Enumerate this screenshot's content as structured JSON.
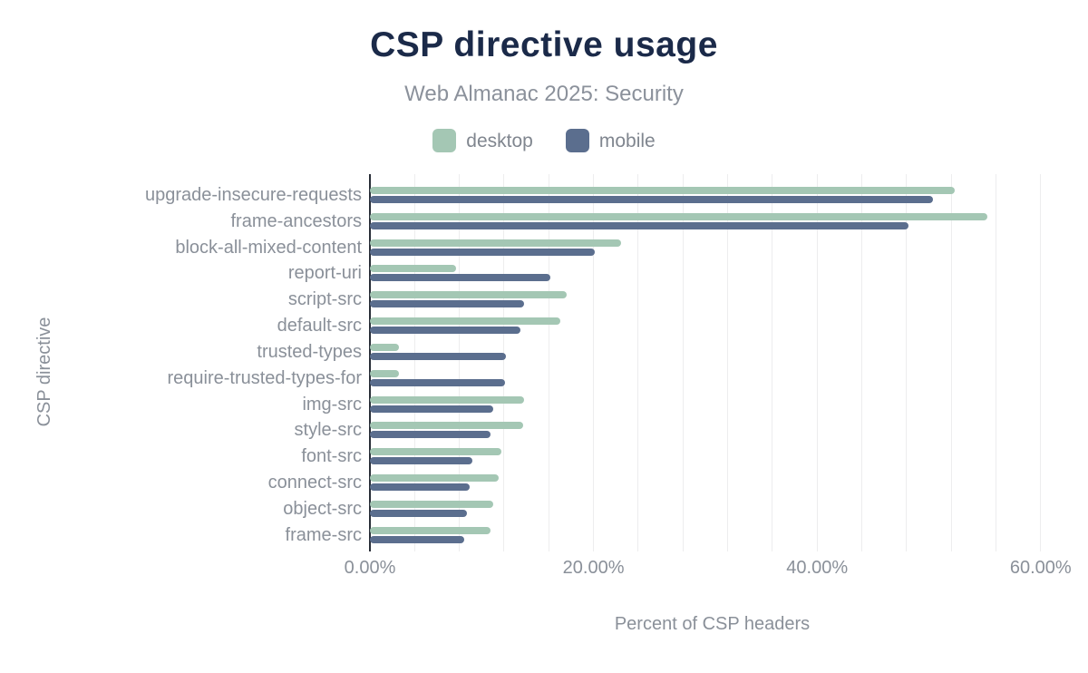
{
  "chart_data": {
    "type": "bar",
    "orientation": "horizontal",
    "title": "CSP directive usage",
    "subtitle": "Web Almanac 2025: Security",
    "xlabel": "Percent of CSP headers",
    "ylabel": "CSP directive",
    "xlim": [
      0,
      61.2
    ],
    "grid": true,
    "grid_step_percent": 4,
    "legend_position": "top",
    "x_ticks": [
      {
        "value": 0,
        "label": "0.00%"
      },
      {
        "value": 20,
        "label": "20.00%"
      },
      {
        "value": 40,
        "label": "40.00%"
      },
      {
        "value": 60,
        "label": "60.00%"
      }
    ],
    "categories": [
      "upgrade-insecure-requests",
      "frame-ancestors",
      "block-all-mixed-content",
      "report-uri",
      "script-src",
      "default-src",
      "trusted-types",
      "require-trusted-types-for",
      "img-src",
      "style-src",
      "font-src",
      "connect-src",
      "object-src",
      "frame-src"
    ],
    "series": [
      {
        "name": "desktop",
        "color": "#a4c7b4",
        "values": [
          52.3,
          55.2,
          22.5,
          7.7,
          17.6,
          17.0,
          2.6,
          2.6,
          13.8,
          13.7,
          11.8,
          11.5,
          11.0,
          10.8
        ]
      },
      {
        "name": "mobile",
        "color": "#5b6e8e",
        "values": [
          50.4,
          48.2,
          20.1,
          16.1,
          13.8,
          13.5,
          12.2,
          12.1,
          11.0,
          10.8,
          9.2,
          8.9,
          8.7,
          8.4
        ]
      }
    ],
    "colors": {
      "title": "#1b2a49",
      "axis_line": "#282d37",
      "text_gray": "#8a9099",
      "gridline": "#ededee",
      "background": "#ffffff"
    }
  }
}
